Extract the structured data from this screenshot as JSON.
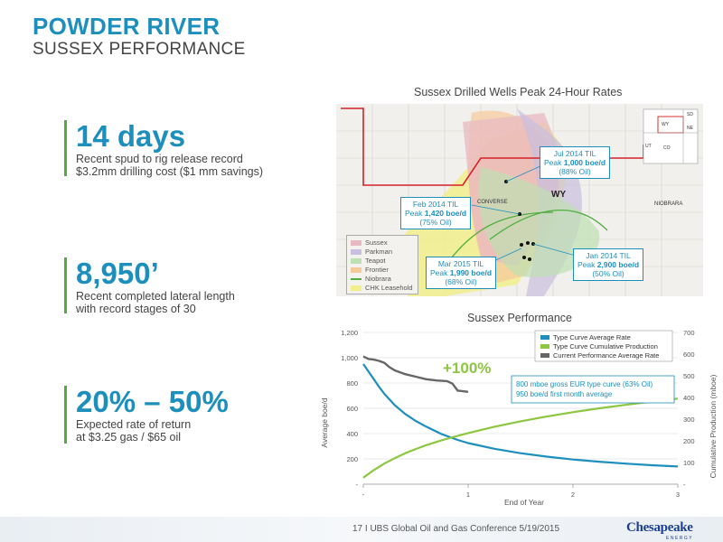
{
  "header": {
    "title": "POWDER RIVER",
    "subtitle": "SUSSEX PERFORMANCE"
  },
  "stats": [
    {
      "value": "14 days",
      "line1": "Recent spud to rig release record",
      "line2": "$3.2mm drilling cost ($1 mm savings)"
    },
    {
      "value": "8,950’",
      "line1": "Recent completed lateral length",
      "line2": "with record stages of 30"
    },
    {
      "value": "20% – 50%",
      "line1": "Expected rate of return",
      "line2": "at $3.25 gas / $65 oil"
    }
  ],
  "map": {
    "caption": "Sussex Drilled Wells Peak 24-Hour Rates",
    "labels": {
      "state": "WY",
      "county": "CONVERSE",
      "niobrara": "NIOBRARA",
      "inset_wy": "WY",
      "inset_sd": "SD",
      "inset_ne": "NE",
      "inset_ut": "UT",
      "inset_co": "CO"
    },
    "legend": [
      {
        "label": "Sussex",
        "color": "#e8b9c2"
      },
      {
        "label": "Parkman",
        "color": "#c9bfe0"
      },
      {
        "label": "Teapot",
        "color": "#bfe0b4"
      },
      {
        "label": "Frontier",
        "color": "#f6c99b"
      },
      {
        "label": "Niobrara",
        "color": "#4fae3e"
      },
      {
        "label": "CHK Leasehold",
        "color": "#f2ee8c"
      }
    ],
    "callouts": [
      {
        "line1": "Jul 2014 TIL",
        "line2_prefix": "Peak ",
        "line2_value": "1,000 boe/d",
        "line3": "(88% Oil)"
      },
      {
        "line1": "Feb 2014 TIL",
        "line2_prefix": "Peak ",
        "line2_value": "1,420 boe/d",
        "line3": "(75% Oil)"
      },
      {
        "line1": "Jan 2014 TIL",
        "line2_prefix": "Peak ",
        "line2_value": "2,900 boe/d",
        "line3": "(50% Oil)"
      },
      {
        "line1": "Mar 2015 TIL",
        "line2_prefix": "Peak ",
        "line2_value": "1,990 boe/d",
        "line3": "(68% Oil)"
      }
    ]
  },
  "chart_data": {
    "type": "line",
    "title": "Sussex Performance",
    "xlabel": "End of Year",
    "ylabel": "Average boe/d",
    "y2label": "Cumulative Production (mboe)",
    "xlim": [
      0,
      3
    ],
    "ylim": [
      0,
      1200
    ],
    "y2lim": [
      0,
      700
    ],
    "x_ticks": [
      "-",
      "1",
      "2",
      "3"
    ],
    "y_ticks": [
      "-",
      "200",
      "400",
      "600",
      "800",
      "1,000",
      "1,200"
    ],
    "y2_ticks": [
      "-",
      "100",
      "200",
      "300",
      "400",
      "500",
      "600",
      "700"
    ],
    "grid": true,
    "legend_position": "top-right",
    "series": [
      {
        "name": "Type Curve Average Rate",
        "color": "#1c8fbd",
        "axis": "left",
        "x": [
          0,
          0.05,
          0.1,
          0.15,
          0.2,
          0.3,
          0.4,
          0.5,
          0.6,
          0.75,
          0.9,
          1.0,
          1.25,
          1.5,
          1.75,
          2.0,
          2.25,
          2.5,
          2.75,
          3.0
        ],
        "y": [
          950,
          890,
          830,
          770,
          715,
          625,
          555,
          500,
          455,
          395,
          350,
          325,
          280,
          245,
          218,
          195,
          178,
          163,
          150,
          140
        ]
      },
      {
        "name": "Type Curve Cumulative Production",
        "color": "#8dc63f",
        "axis": "right",
        "x": [
          0,
          0.1,
          0.2,
          0.3,
          0.4,
          0.5,
          0.6,
          0.75,
          0.9,
          1.0,
          1.25,
          1.5,
          1.75,
          2.0,
          2.25,
          2.5,
          2.75,
          3.0
        ],
        "y": [
          30,
          65,
          95,
          120,
          143,
          162,
          180,
          203,
          223,
          236,
          265,
          290,
          312,
          332,
          350,
          366,
          381,
          395
        ]
      },
      {
        "name": "Current Performance Average Rate",
        "color": "#666666",
        "axis": "left",
        "x": [
          0.0,
          0.05,
          0.1,
          0.15,
          0.2,
          0.25,
          0.3,
          0.4,
          0.5,
          0.6,
          0.7,
          0.8,
          0.85,
          0.9,
          0.95,
          1.0
        ],
        "y": [
          1010,
          990,
          985,
          975,
          960,
          925,
          900,
          870,
          850,
          830,
          820,
          815,
          795,
          740,
          735,
          730
        ]
      }
    ],
    "annotations": [
      {
        "text": "+100%",
        "color": "#8dc63f"
      },
      {
        "text_line1": "800 mboe gross EUR type curve (63% Oil)",
        "text_line2": "950 boe/d first month average"
      }
    ]
  },
  "footer": {
    "text": "17   I   UBS Global Oil and Gas Conference   5/19/2015",
    "logo": "Chesapeake",
    "logo_sub": "ENERGY"
  }
}
